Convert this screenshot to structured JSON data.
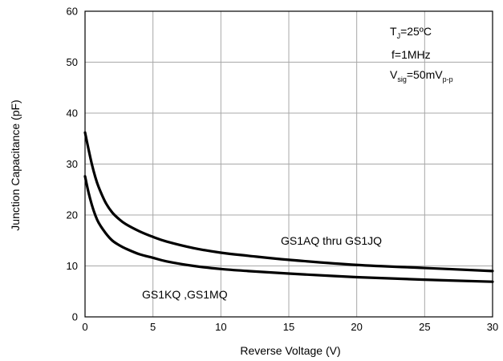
{
  "chart_data": {
    "type": "line",
    "title": "",
    "xlabel": "Reverse Voltage (V)",
    "ylabel": "Junction Capacitance (pF)",
    "xlim": [
      0,
      30
    ],
    "ylim": [
      0,
      60
    ],
    "x_ticks": [
      0,
      5,
      10,
      15,
      20,
      25,
      30
    ],
    "y_ticks": [
      0,
      10,
      20,
      30,
      40,
      50,
      60
    ],
    "x_tick_labels": [
      "0",
      "5",
      "10",
      "15",
      "20",
      "25",
      "30"
    ],
    "y_tick_labels": [
      "0",
      "10",
      "20",
      "30",
      "40",
      "50",
      "60"
    ],
    "grid": true,
    "legend": "none",
    "series": [
      {
        "name": "GS1AQ thru GS1JQ",
        "color": "#000000",
        "x": [
          0,
          0.25,
          0.5,
          0.75,
          1,
          1.5,
          2,
          2.5,
          3,
          4,
          5,
          6,
          8,
          10,
          12,
          15,
          20,
          25,
          30
        ],
        "y": [
          36.2,
          33,
          30,
          27.5,
          25.5,
          22.5,
          20.5,
          19.2,
          18.2,
          16.8,
          15.7,
          14.8,
          13.5,
          12.6,
          12,
          11.2,
          10.2,
          9.6,
          9
        ]
      },
      {
        "name": "GS1KQ ,GS1MQ",
        "color": "#000000",
        "x": [
          0,
          0.25,
          0.5,
          0.75,
          1,
          1.5,
          2,
          2.5,
          3,
          4,
          5,
          6,
          8,
          10,
          12,
          15,
          20,
          25,
          30
        ],
        "y": [
          27.6,
          24.5,
          22,
          20,
          18.5,
          16.5,
          15,
          14.1,
          13.4,
          12.3,
          11.6,
          10.9,
          10,
          9.4,
          9,
          8.5,
          7.8,
          7.3,
          6.9
        ]
      }
    ],
    "annotations": {
      "series_1_label": "GS1AQ thru GS1JQ",
      "series_2_label": "GS1KQ ,GS1MQ",
      "conditions": {
        "line1_main": "T",
        "line1_sub": "J",
        "line1_rest": "=25ºC",
        "line2": "f=1MHz",
        "line3_main": "V",
        "line3_sub": "sig",
        "line3_mid": "=50mV",
        "line3_sub2": "p-p"
      }
    }
  }
}
